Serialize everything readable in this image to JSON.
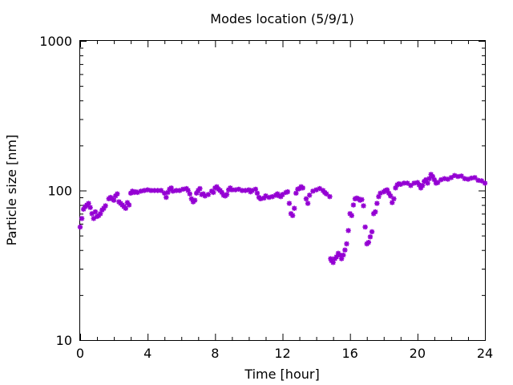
{
  "chart_data": {
    "type": "scatter",
    "title": "Modes location (5/9/1)",
    "xlabel": "Time [hour]",
    "ylabel": "Particle size [nm]",
    "xlim": [
      0,
      24
    ],
    "ylim": [
      10,
      1000
    ],
    "yscale": "log",
    "xticks": [
      0,
      4,
      8,
      12,
      16,
      20,
      24
    ],
    "xtick_labels": [
      "0",
      "4",
      "8",
      "12",
      "16",
      "20",
      "24"
    ],
    "yticks": [
      10,
      100,
      1000
    ],
    "ytick_labels": [
      "10",
      "100",
      "1000"
    ],
    "grid": false,
    "legend": "none",
    "marker_color": "#9400d3",
    "series": [
      {
        "points": [
          [
            0.0,
            57
          ],
          [
            0.1,
            65
          ],
          [
            0.2,
            75
          ],
          [
            0.3,
            78
          ],
          [
            0.4,
            80
          ],
          [
            0.5,
            82
          ],
          [
            0.6,
            77
          ],
          [
            0.7,
            70
          ],
          [
            0.8,
            65
          ],
          [
            0.9,
            72
          ],
          [
            1.0,
            67
          ],
          [
            1.1,
            68
          ],
          [
            1.2,
            70
          ],
          [
            1.3,
            74
          ],
          [
            1.4,
            76
          ],
          [
            1.5,
            79
          ],
          [
            1.7,
            88
          ],
          [
            1.8,
            90
          ],
          [
            1.9,
            88
          ],
          [
            2.0,
            86
          ],
          [
            2.1,
            92
          ],
          [
            2.2,
            95
          ],
          [
            2.3,
            84
          ],
          [
            2.4,
            82
          ],
          [
            2.5,
            80
          ],
          [
            2.6,
            78
          ],
          [
            2.7,
            76
          ],
          [
            2.8,
            83
          ],
          [
            2.9,
            80
          ],
          [
            3.0,
            96
          ],
          [
            3.1,
            99
          ],
          [
            3.2,
            97
          ],
          [
            3.3,
            98
          ],
          [
            3.4,
            97
          ],
          [
            3.6,
            99
          ],
          [
            3.8,
            100
          ],
          [
            4.0,
            101
          ],
          [
            4.2,
            100
          ],
          [
            4.4,
            100
          ],
          [
            4.6,
            100
          ],
          [
            4.8,
            100
          ],
          [
            5.0,
            96
          ],
          [
            5.1,
            90
          ],
          [
            5.2,
            97
          ],
          [
            5.3,
            102
          ],
          [
            5.4,
            104
          ],
          [
            5.5,
            99
          ],
          [
            5.7,
            100
          ],
          [
            5.9,
            100
          ],
          [
            6.1,
            102
          ],
          [
            6.3,
            103
          ],
          [
            6.4,
            100
          ],
          [
            6.5,
            95
          ],
          [
            6.6,
            88
          ],
          [
            6.7,
            84
          ],
          [
            6.8,
            86
          ],
          [
            6.9,
            96
          ],
          [
            7.0,
            100
          ],
          [
            7.1,
            103
          ],
          [
            7.2,
            94
          ],
          [
            7.3,
            95
          ],
          [
            7.4,
            92
          ],
          [
            7.6,
            94
          ],
          [
            7.8,
            99
          ],
          [
            7.9,
            97
          ],
          [
            8.0,
            104
          ],
          [
            8.1,
            106
          ],
          [
            8.2,
            102
          ],
          [
            8.3,
            100
          ],
          [
            8.4,
            97
          ],
          [
            8.5,
            93
          ],
          [
            8.6,
            92
          ],
          [
            8.7,
            94
          ],
          [
            8.8,
            101
          ],
          [
            8.9,
            104
          ],
          [
            9.0,
            101
          ],
          [
            9.2,
            101
          ],
          [
            9.4,
            102
          ],
          [
            9.6,
            100
          ],
          [
            9.8,
            100
          ],
          [
            10.0,
            101
          ],
          [
            10.1,
            98
          ],
          [
            10.2,
            100
          ],
          [
            10.4,
            102
          ],
          [
            10.5,
            96
          ],
          [
            10.6,
            90
          ],
          [
            10.7,
            88
          ],
          [
            10.9,
            89
          ],
          [
            11.0,
            92
          ],
          [
            11.2,
            90
          ],
          [
            11.4,
            91
          ],
          [
            11.6,
            93
          ],
          [
            11.7,
            95
          ],
          [
            11.8,
            92
          ],
          [
            11.9,
            91
          ],
          [
            12.0,
            94
          ],
          [
            12.2,
            97
          ],
          [
            12.3,
            98
          ],
          [
            12.4,
            82
          ],
          [
            12.5,
            70
          ],
          [
            12.6,
            68
          ],
          [
            12.7,
            76
          ],
          [
            12.8,
            96
          ],
          [
            12.9,
            102
          ],
          [
            13.0,
            103
          ],
          [
            13.1,
            106
          ],
          [
            13.2,
            104
          ],
          [
            13.4,
            88
          ],
          [
            13.5,
            82
          ],
          [
            13.6,
            93
          ],
          [
            13.8,
            99
          ],
          [
            14.0,
            101
          ],
          [
            14.2,
            103
          ],
          [
            14.4,
            100
          ],
          [
            14.5,
            97
          ],
          [
            14.6,
            95
          ],
          [
            14.8,
            91
          ],
          [
            14.85,
            35
          ],
          [
            14.9,
            34
          ],
          [
            15.0,
            33
          ],
          [
            15.1,
            35
          ],
          [
            15.2,
            36
          ],
          [
            15.3,
            38
          ],
          [
            15.4,
            37
          ],
          [
            15.5,
            35
          ],
          [
            15.6,
            37
          ],
          [
            15.7,
            40
          ],
          [
            15.8,
            44
          ],
          [
            15.9,
            54
          ],
          [
            16.0,
            70
          ],
          [
            16.1,
            68
          ],
          [
            16.2,
            80
          ],
          [
            16.3,
            88
          ],
          [
            16.4,
            89
          ],
          [
            16.5,
            88
          ],
          [
            16.6,
            86
          ],
          [
            16.7,
            87
          ],
          [
            16.8,
            79
          ],
          [
            16.9,
            57
          ],
          [
            17.0,
            44
          ],
          [
            17.1,
            45
          ],
          [
            17.2,
            49
          ],
          [
            17.3,
            53
          ],
          [
            17.4,
            70
          ],
          [
            17.5,
            72
          ],
          [
            17.6,
            82
          ],
          [
            17.7,
            91
          ],
          [
            17.8,
            96
          ],
          [
            18.0,
            98
          ],
          [
            18.1,
            100
          ],
          [
            18.2,
            101
          ],
          [
            18.3,
            96
          ],
          [
            18.4,
            92
          ],
          [
            18.5,
            83
          ],
          [
            18.6,
            88
          ],
          [
            18.7,
            104
          ],
          [
            18.8,
            109
          ],
          [
            18.9,
            111
          ],
          [
            19.0,
            110
          ],
          [
            19.2,
            112
          ],
          [
            19.4,
            112
          ],
          [
            19.6,
            108
          ],
          [
            19.8,
            112
          ],
          [
            20.0,
            113
          ],
          [
            20.1,
            109
          ],
          [
            20.2,
            104
          ],
          [
            20.3,
            108
          ],
          [
            20.4,
            115
          ],
          [
            20.5,
            118
          ],
          [
            20.6,
            112
          ],
          [
            20.7,
            120
          ],
          [
            20.8,
            128
          ],
          [
            20.9,
            124
          ],
          [
            21.0,
            118
          ],
          [
            21.1,
            112
          ],
          [
            21.2,
            113
          ],
          [
            21.4,
            118
          ],
          [
            21.6,
            120
          ],
          [
            21.8,
            119
          ],
          [
            22.0,
            122
          ],
          [
            22.2,
            126
          ],
          [
            22.4,
            124
          ],
          [
            22.6,
            125
          ],
          [
            22.8,
            120
          ],
          [
            23.0,
            119
          ],
          [
            23.2,
            121
          ],
          [
            23.4,
            122
          ],
          [
            23.6,
            117
          ],
          [
            23.8,
            116
          ],
          [
            24.0,
            112
          ]
        ]
      }
    ]
  }
}
